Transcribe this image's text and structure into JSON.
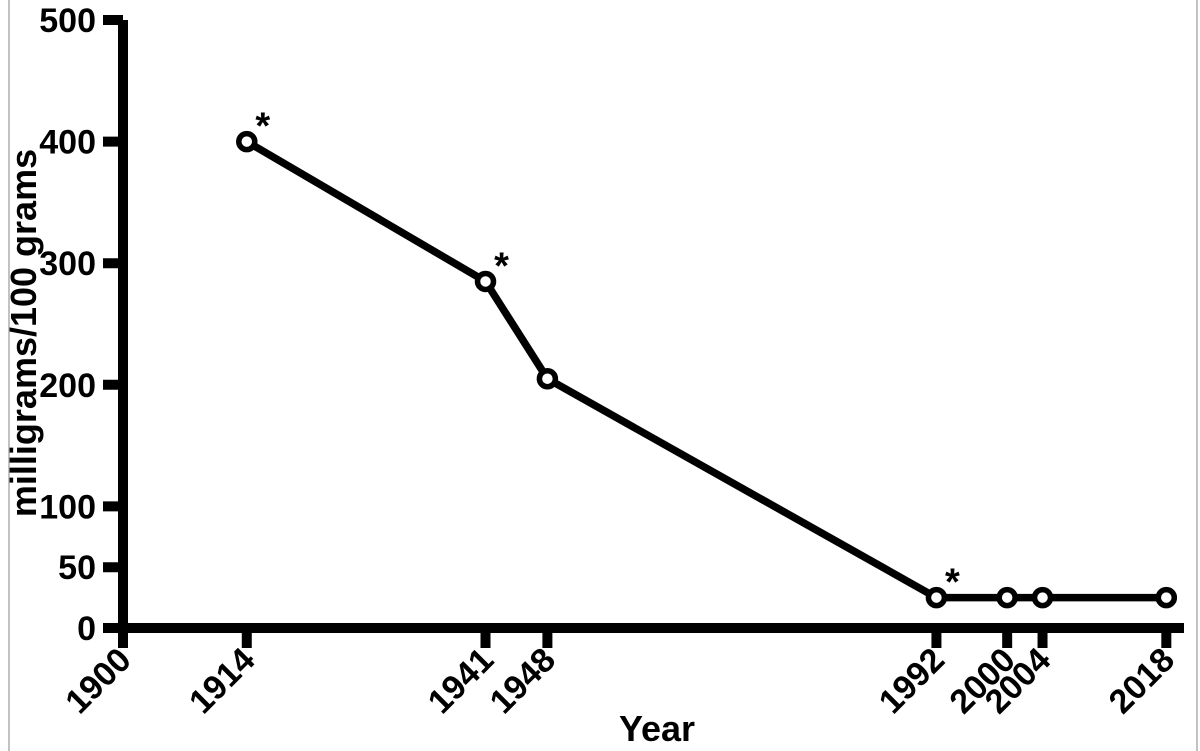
{
  "page": {
    "background": "#ffffff",
    "edge_line_color": "#c2c2c2"
  },
  "chart_data": {
    "type": "line",
    "title": "",
    "xlabel": "Year",
    "ylabel": "milligrams/100 grams",
    "x": [
      1914,
      1941,
      1948,
      1992,
      2000,
      2004,
      2018
    ],
    "values": [
      400,
      285,
      205,
      25,
      25,
      25,
      25
    ],
    "starred_x": [
      1914,
      1941,
      1992
    ],
    "annotation_symbol": "*",
    "x_ticks": [
      1900,
      1914,
      1941,
      1948,
      1992,
      2000,
      2004,
      2018
    ],
    "y_ticks": [
      0,
      50,
      100,
      200,
      300,
      400,
      500
    ],
    "xlim": [
      1900,
      2020
    ],
    "ylim": [
      0,
      500
    ],
    "grid": false,
    "legend": "none",
    "marker_style": "open-circle",
    "line_color": "#000000",
    "marker_fill": "#ffffff",
    "axis_color": "#000000"
  }
}
